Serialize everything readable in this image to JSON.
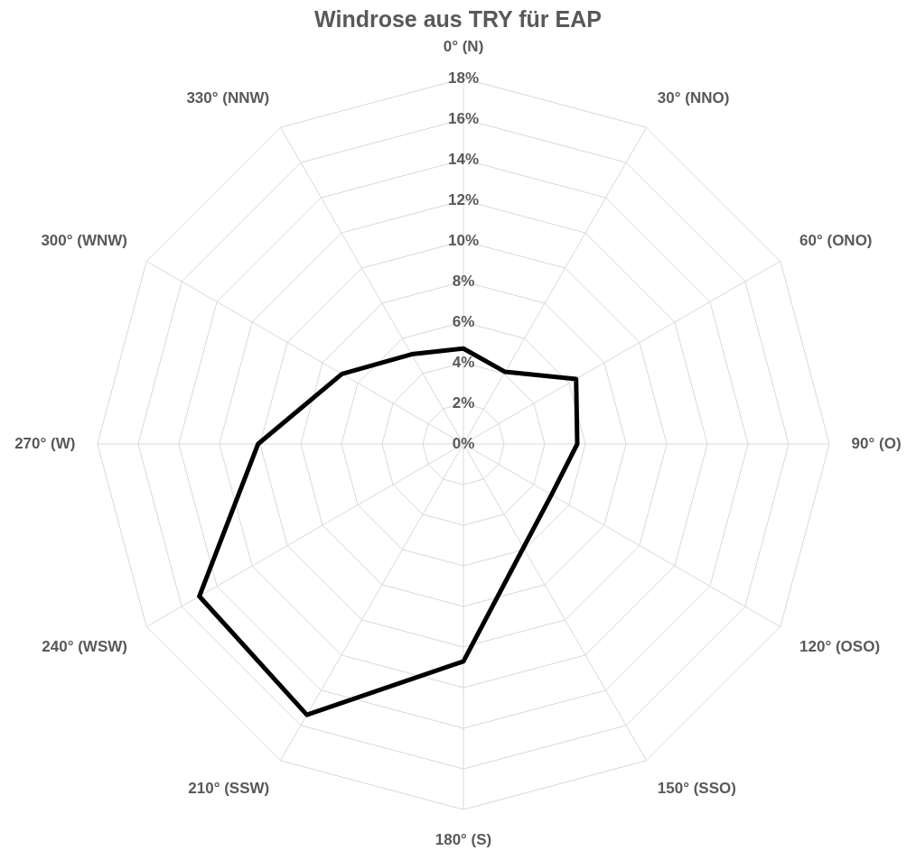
{
  "chart_data": {
    "type": "radar",
    "title": "Windrose aus TRY für EAP",
    "categories": [
      "0° (N)",
      "30° (NNO)",
      "60° (ONO)",
      "90° (O)",
      "120° (OSO)",
      "150° (SSO)",
      "180° (S)",
      "210° (SSW)",
      "240° (WSW)",
      "270° (W)",
      "300° (WNW)",
      "330° (NNW)"
    ],
    "series": [
      {
        "color": "#000000",
        "values": [
          4.7,
          4.1,
          6.4,
          5.6,
          5.0,
          5.9,
          10.7,
          15.4,
          15.0,
          10.1,
          6.9,
          5.1
        ]
      }
    ],
    "ylim": [
      0,
      18
    ],
    "yticks": [
      {
        "value": 0,
        "label": "0%"
      },
      {
        "value": 2,
        "label": "2%"
      },
      {
        "value": 4,
        "label": "4%"
      },
      {
        "value": 6,
        "label": "6%"
      },
      {
        "value": 8,
        "label": "8%"
      },
      {
        "value": 10,
        "label": "10%"
      },
      {
        "value": 12,
        "label": "12%"
      },
      {
        "value": 14,
        "label": "14%"
      },
      {
        "value": 16,
        "label": "16%"
      },
      {
        "value": 18,
        "label": "18%"
      }
    ],
    "grid": true,
    "marker": "none",
    "legend": false
  }
}
